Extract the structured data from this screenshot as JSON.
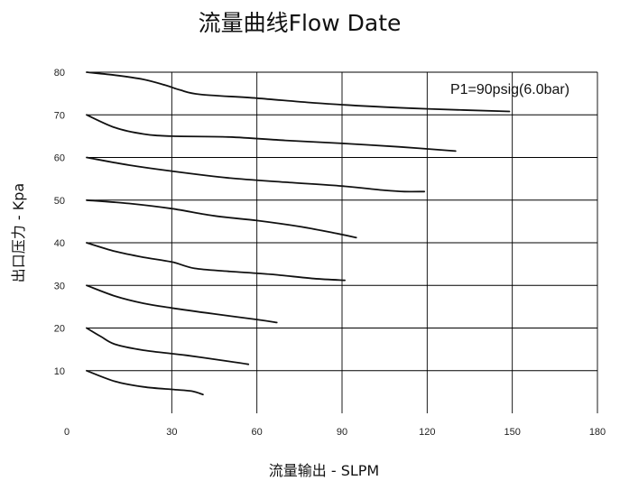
{
  "chart_data": {
    "type": "line",
    "title": "流量曲线Flow Date",
    "xlabel": "流量输出 - SLPM",
    "ylabel": "出口压力 - Kpa",
    "xlim": [
      0,
      180
    ],
    "ylim": [
      0,
      80
    ],
    "xticks": [
      "0",
      "30",
      "60",
      "90",
      "120",
      "150",
      "180"
    ],
    "yticks": [
      "10",
      "20",
      "30",
      "40",
      "50",
      "60",
      "70",
      "80"
    ],
    "grid": true,
    "annotation": "P1=90psig(6.0bar)",
    "series": [
      {
        "x": [
          0,
          10,
          20,
          28,
          33,
          40,
          60,
          80,
          100,
          120,
          149
        ],
        "y": [
          80,
          79.3,
          78.3,
          76.9,
          75.8,
          74.8,
          73.9,
          72.8,
          72.0,
          71.4,
          70.8
        ]
      },
      {
        "x": [
          0,
          10,
          20,
          30,
          50,
          70,
          90,
          110,
          130
        ],
        "y": [
          70,
          67,
          65.5,
          65,
          64.8,
          64,
          63.3,
          62.5,
          61.5
        ]
      },
      {
        "x": [
          0,
          15,
          30,
          50,
          70,
          90,
          105,
          112,
          119
        ],
        "y": [
          60,
          58.2,
          56.8,
          55.2,
          54.2,
          53.3,
          52.3,
          52.0,
          52.0
        ]
      },
      {
        "x": [
          0,
          15,
          30,
          45,
          60,
          75,
          88,
          95
        ],
        "y": [
          50,
          49.2,
          48,
          46.3,
          45.2,
          43.8,
          42.2,
          41.2
        ]
      },
      {
        "x": [
          0,
          10,
          20,
          30,
          38,
          50,
          65,
          80,
          91
        ],
        "y": [
          40,
          38,
          36.6,
          35.5,
          34,
          33.3,
          32.6,
          31.6,
          31.2
        ]
      },
      {
        "x": [
          0,
          10,
          20,
          30,
          45,
          60,
          67
        ],
        "y": [
          30,
          27.5,
          25.8,
          24.7,
          23.3,
          22,
          21.3
        ]
      },
      {
        "x": [
          0,
          5,
          10,
          20,
          35,
          50,
          57
        ],
        "y": [
          20,
          18,
          16.2,
          14.8,
          13.6,
          12.2,
          11.5
        ]
      },
      {
        "x": [
          0,
          10,
          20,
          30,
          37,
          41
        ],
        "y": [
          10,
          7.5,
          6.2,
          5.6,
          5.2,
          4.4
        ]
      }
    ]
  }
}
